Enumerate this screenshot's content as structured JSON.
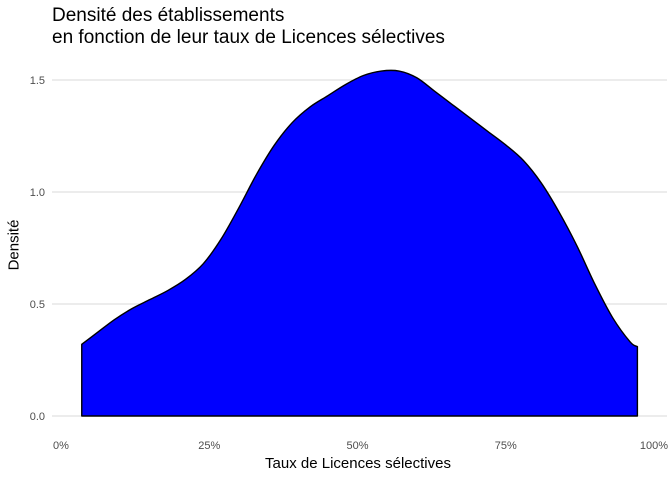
{
  "chart_data": {
    "type": "area",
    "title_lines": [
      "Densité des établissements",
      "en fonction de leur taux de Licences sélectives"
    ],
    "xlabel": "Taux de Licences sélectives",
    "ylabel": "Densité",
    "xlim": [
      0,
      1
    ],
    "ylim": [
      0,
      1.5
    ],
    "x_ticks": [
      0,
      0.25,
      0.5,
      0.75,
      1
    ],
    "x_tick_labels": [
      "0%",
      "25%",
      "50%",
      "75%",
      "100%"
    ],
    "y_ticks": [
      0,
      0.5,
      1,
      1.5
    ],
    "y_tick_labels": [
      "0.0",
      "0.5",
      "1.0",
      "1.5"
    ],
    "grid": "horizontal",
    "fill_color": "#0000ff",
    "line_color": "#000000",
    "grid_color": "#d9d9d9",
    "series": [
      {
        "x": [
          0.035,
          0.06,
          0.09,
          0.12,
          0.15,
          0.18,
          0.21,
          0.24,
          0.27,
          0.3,
          0.33,
          0.36,
          0.39,
          0.42,
          0.45,
          0.48,
          0.51,
          0.54,
          0.57,
          0.6,
          0.63,
          0.66,
          0.69,
          0.72,
          0.75,
          0.78,
          0.81,
          0.84,
          0.87,
          0.9,
          0.93,
          0.96,
          0.972
        ],
        "y": [
          0.32,
          0.37,
          0.43,
          0.48,
          0.52,
          0.56,
          0.61,
          0.68,
          0.79,
          0.93,
          1.08,
          1.21,
          1.31,
          1.38,
          1.43,
          1.48,
          1.52,
          1.54,
          1.54,
          1.51,
          1.45,
          1.39,
          1.33,
          1.27,
          1.21,
          1.14,
          1.04,
          0.91,
          0.76,
          0.59,
          0.44,
          0.33,
          0.31
        ]
      }
    ]
  }
}
